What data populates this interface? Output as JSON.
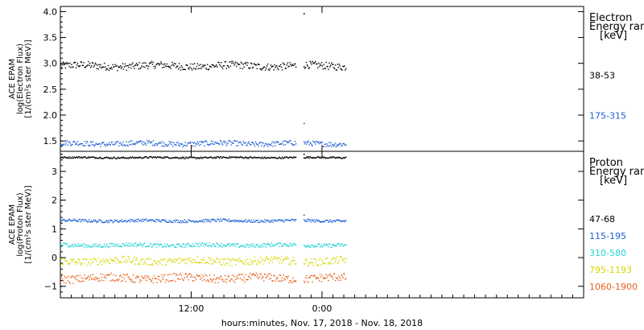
{
  "chart_data": [
    {
      "type": "scatter",
      "panel": "electron",
      "ylabel_lines": [
        "ACE EPAM",
        "log(Electron Flux)",
        "[1/(cm²s ster MeV)]"
      ],
      "ylim": [
        1.3,
        4.1
      ],
      "yticks": [
        "1.5",
        "2.0",
        "2.5",
        "3.0",
        "3.5",
        "4.0"
      ],
      "ytick_values": [
        1.5,
        2.0,
        2.5,
        3.0,
        3.5,
        4.0
      ],
      "legend_title_lines": [
        "Electron",
        "Energy ran",
        "[keV]"
      ],
      "series": [
        {
          "name": "38-53",
          "color": "#000000",
          "base": 2.96,
          "noise": 0.07,
          "outliers": [
            [
              22.3,
              3.97
            ]
          ]
        },
        {
          "name": "175-315",
          "color": "#1f5fd6",
          "base": 1.46,
          "noise": 0.05,
          "outliers": [
            [
              22.3,
              1.85
            ]
          ]
        }
      ]
    },
    {
      "type": "scatter",
      "panel": "proton",
      "ylabel_lines": [
        "ACE EPAM",
        "log(Proton Flux)",
        "[1/(cm²s ster MeV)]"
      ],
      "ylim": [
        -1.4,
        3.7
      ],
      "yticks": [
        "−1",
        "0",
        "1",
        "2",
        "3"
      ],
      "ytick_values": [
        -1,
        0,
        1,
        2,
        3
      ],
      "legend_title_lines": [
        "Proton",
        "Energy ran",
        "[keV]"
      ],
      "series": [
        {
          "name": "47-68",
          "color": "#000000",
          "base": 3.5,
          "noise": 0.03,
          "outliers": [
            [
              22.3,
              3.62
            ]
          ]
        },
        {
          "name": "115-195",
          "color": "#1f5fd6",
          "base": 1.3,
          "noise": 0.05,
          "outliers": [
            [
              22.3,
              1.5
            ]
          ]
        },
        {
          "name": "310-580",
          "color": "#22d3d3",
          "base": 0.45,
          "noise": 0.07,
          "outliers": []
        },
        {
          "name": "795-1193",
          "color": "#d6d600",
          "base": -0.1,
          "noise": 0.13,
          "outliers": []
        },
        {
          "name": "1060-1900",
          "color": "#e8601a",
          "base": -0.7,
          "noise": 0.14,
          "outliers": []
        }
      ]
    }
  ],
  "x_axis": {
    "xlim": [
      0,
      48
    ],
    "tick_labels": [
      "12:00",
      "0:00"
    ],
    "tick_values": [
      12,
      24
    ],
    "data_segments": [
      [
        0,
        21.6
      ],
      [
        22.3,
        26.2
      ]
    ],
    "xlabel": "hours:minutes, Nov. 17, 2018 - Nov. 18, 2018"
  },
  "colors": {
    "axis": "#000000",
    "background": "#ffffff"
  }
}
